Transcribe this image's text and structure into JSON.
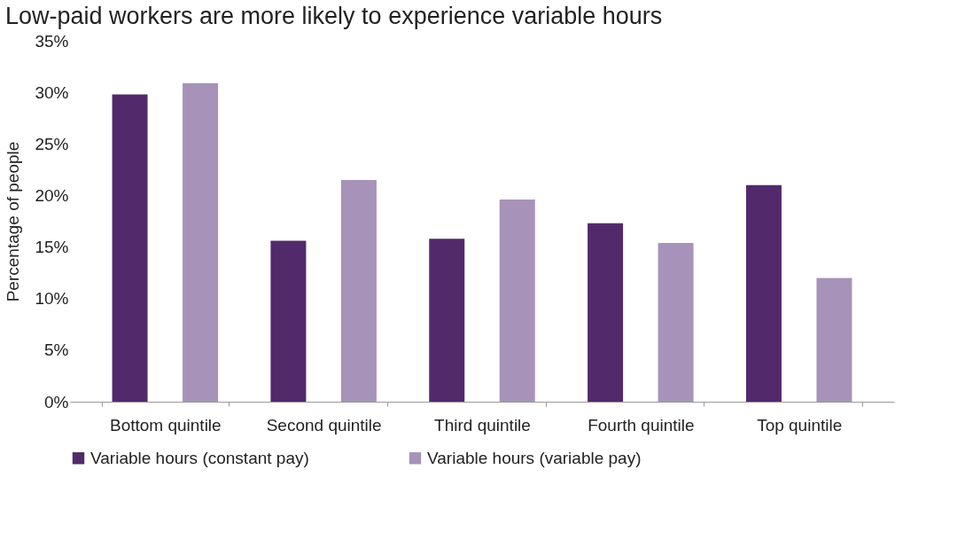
{
  "chart_data": {
    "type": "bar",
    "title": "Low-paid workers are more likely to experience variable hours",
    "ylabel": "Percentage of people",
    "categories": [
      "Bottom quintile",
      "Second quintile",
      "Third quintile",
      "Fourth quintile",
      "Top quintile"
    ],
    "series": [
      {
        "name": "Variable hours (constant pay)",
        "color": "#522a6b",
        "values": [
          29.8,
          15.6,
          15.8,
          17.3,
          21.0
        ]
      },
      {
        "name": "Variable hours (variable pay)",
        "color": "#a793b9",
        "values": [
          30.9,
          21.5,
          19.6,
          15.4,
          12.0
        ]
      }
    ],
    "ylim": [
      0,
      35
    ],
    "yticks": [
      {
        "value": 0,
        "label": "0%"
      },
      {
        "value": 5,
        "label": "5%"
      },
      {
        "value": 10,
        "label": "10%"
      },
      {
        "value": 15,
        "label": "15%"
      },
      {
        "value": 20,
        "label": "20%"
      },
      {
        "value": 25,
        "label": "25%"
      },
      {
        "value": 30,
        "label": "30%"
      },
      {
        "value": 35,
        "label": "35%"
      }
    ],
    "grid": false,
    "legend": "bottom"
  }
}
